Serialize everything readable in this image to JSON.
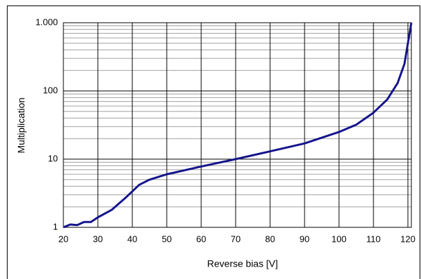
{
  "chart_data": {
    "type": "line",
    "xlabel": "Reverse bias [V]",
    "ylabel": "Multiplication",
    "x": [
      20,
      22,
      24,
      26,
      28,
      30,
      34,
      38,
      42,
      45,
      50,
      60,
      70,
      80,
      90,
      100,
      105,
      110,
      114,
      117,
      119,
      120,
      121
    ],
    "series": [
      {
        "name": "Multiplication",
        "color": "#14148c",
        "values": [
          1,
          1.1,
          1.08,
          1.2,
          1.2,
          1.4,
          1.8,
          2.7,
          4.2,
          5,
          6,
          7.8,
          10,
          13,
          17,
          25,
          32,
          48,
          75,
          130,
          250,
          500,
          1000
        ]
      }
    ],
    "xlim": [
      20,
      121
    ],
    "xticks": [
      20,
      30,
      40,
      50,
      60,
      70,
      80,
      90,
      100,
      110,
      120
    ],
    "ylim": [
      1,
      1000
    ],
    "yscale": "log",
    "yticks": [
      1,
      10,
      100,
      {
        "value": 1000,
        "label": "1.000"
      }
    ],
    "minor_yticks": [
      2,
      3,
      4,
      5,
      6,
      7,
      8,
      9,
      20,
      30,
      40,
      50,
      60,
      70,
      80,
      90,
      200,
      300,
      400,
      500,
      600,
      700,
      800,
      900
    ],
    "grid": true
  }
}
